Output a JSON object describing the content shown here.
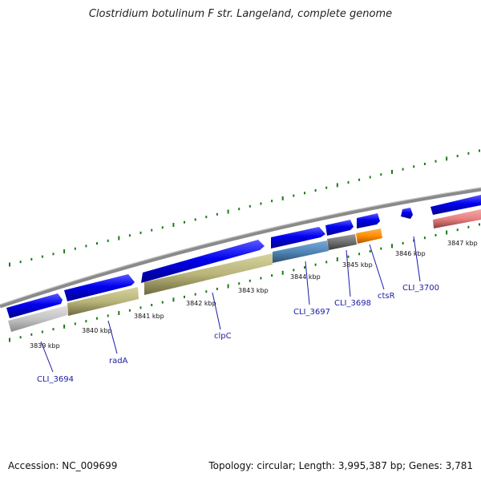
{
  "title": "Clostridium botulinum F str. Langeland, complete genome",
  "footer": {
    "accession": "Accession: NC_009699",
    "topology": "Topology: circular; Length: 3,995,387 bp; Genes: 3,781"
  },
  "kbp_ticks": [
    "3839 kbp",
    "3840 kbp",
    "3841 kbp",
    "3842 kbp",
    "3843 kbp",
    "3844 kbp",
    "3845 kbp",
    "3846 kbp",
    "3847 kbp"
  ],
  "gene_labels": [
    "CLI_3694",
    "radA",
    "clpC",
    "CLI_3697",
    "CLI_3698",
    "ctsR",
    "CLI_3700"
  ],
  "colors": {
    "forward_strand": "#0000ee",
    "backbone": "#8a8a8a",
    "gc_tick": "#1a7a1a",
    "gene_khaki": "#b8b47a",
    "gene_steelblue": "#4f86b8",
    "gene_darkgray": "#6f6f6f",
    "gene_orange": "#ff8c00",
    "gene_salmon": "#e88080",
    "gene_lightgray": "#c4c4c4"
  }
}
